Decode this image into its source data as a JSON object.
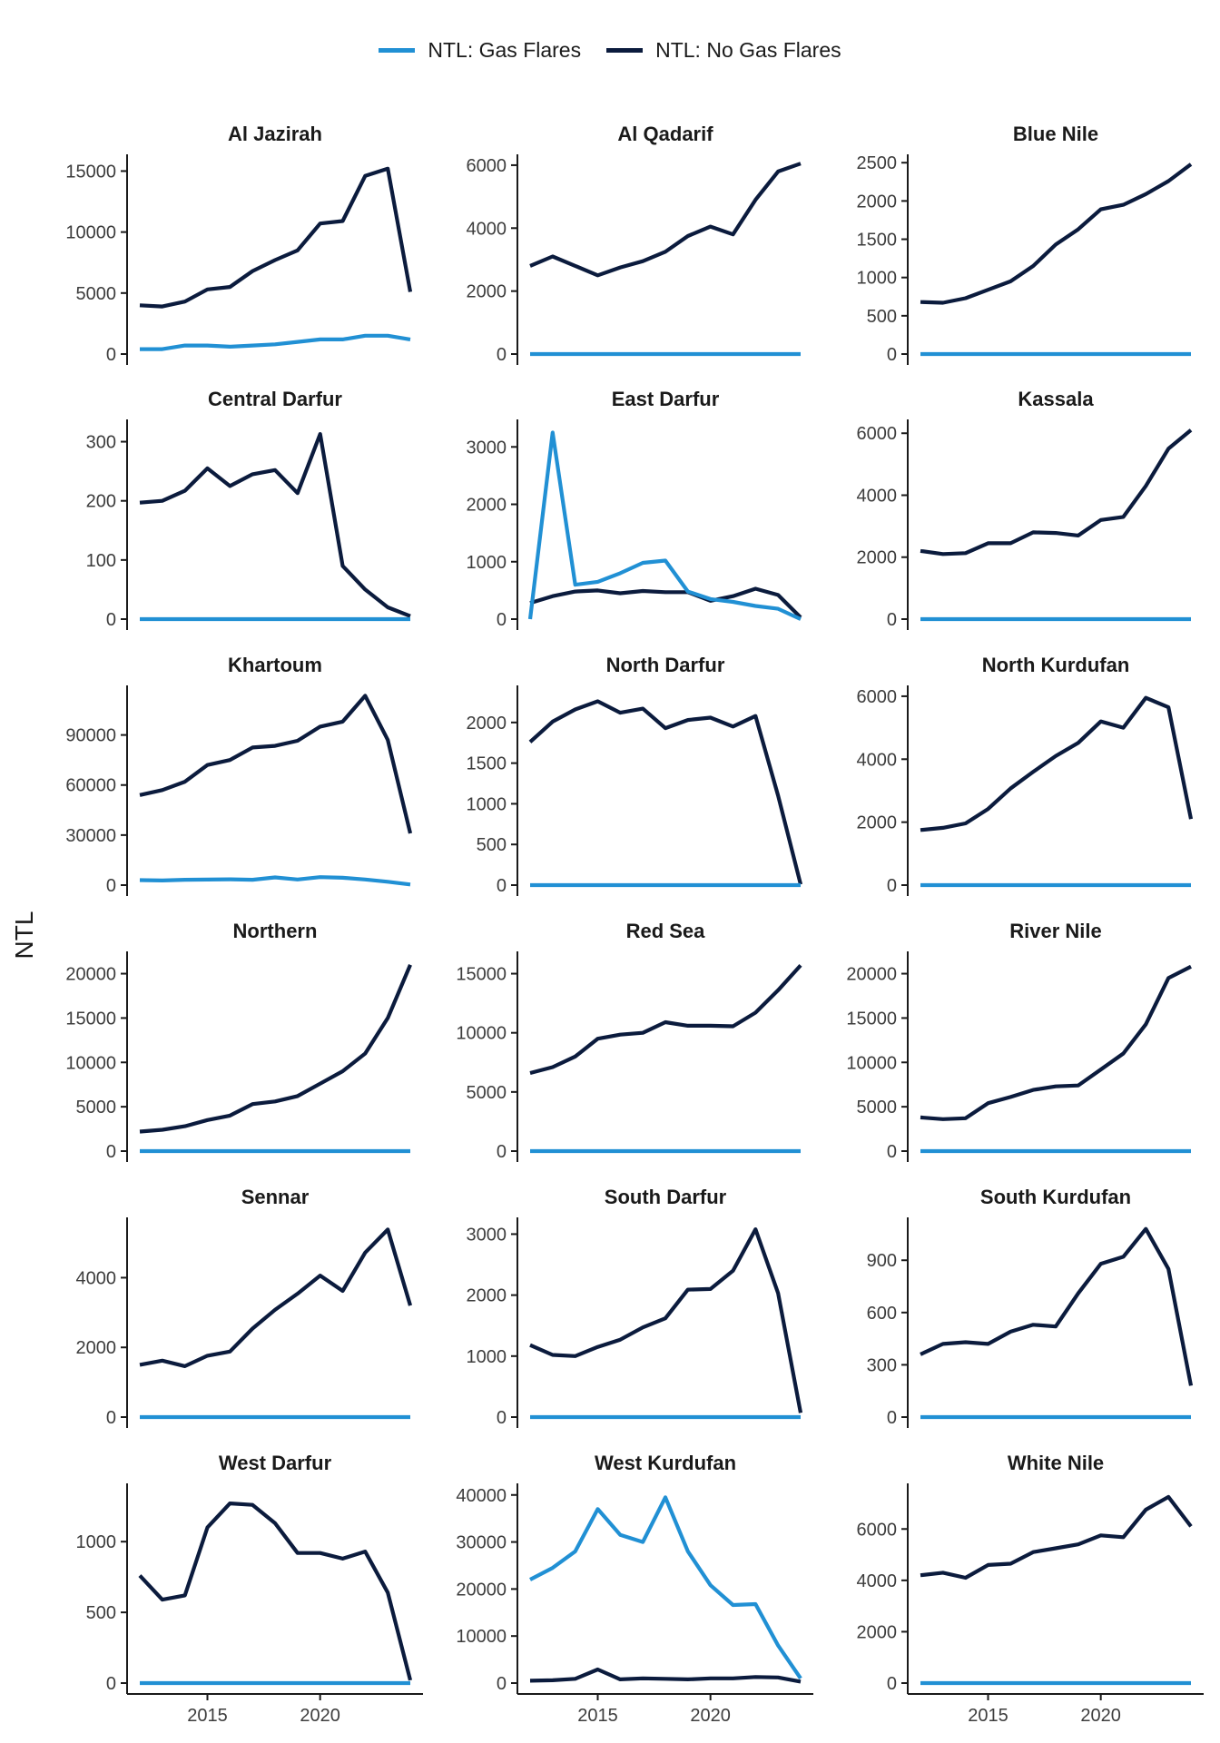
{
  "legend": {
    "items": [
      {
        "label": "NTL: Gas Flares",
        "color": "#2190D4"
      },
      {
        "label": "NTL: No Gas Flares",
        "color": "#0B1B3D"
      }
    ]
  },
  "ylabel": "NTL",
  "chart_data": {
    "type": "line",
    "ylabel": "NTL",
    "x_ticks": [
      2015,
      2020
    ],
    "years": [
      2012,
      2013,
      2014,
      2015,
      2016,
      2017,
      2018,
      2019,
      2020,
      2021,
      2022,
      2023,
      2024
    ],
    "panels": [
      {
        "title": "Al Jazirah",
        "ylim": [
          0,
          16000
        ],
        "yticks": [
          0,
          5000,
          10000,
          15000
        ],
        "gas_flares": [
          400,
          400,
          700,
          700,
          600,
          700,
          800,
          1000,
          1200,
          1200,
          1500,
          1500,
          1200
        ],
        "no_gas_flares": [
          4000,
          3900,
          4300,
          5300,
          5500,
          6800,
          7700,
          8500,
          10700,
          10900,
          14600,
          15200,
          5100
        ]
      },
      {
        "title": "Al Qadarif",
        "ylim": [
          0,
          6200
        ],
        "yticks": [
          0,
          2000,
          4000,
          6000
        ],
        "gas_flares": [
          0,
          0,
          0,
          0,
          0,
          0,
          0,
          0,
          0,
          0,
          0,
          0,
          0
        ],
        "no_gas_flares": [
          2800,
          3100,
          2800,
          2500,
          2750,
          2950,
          3250,
          3750,
          4050,
          3800,
          4900,
          5800,
          6050
        ]
      },
      {
        "title": "Blue Nile",
        "ylim": [
          0,
          2550
        ],
        "yticks": [
          0,
          500,
          1000,
          1500,
          2000,
          2500
        ],
        "gas_flares": [
          0,
          0,
          0,
          0,
          0,
          0,
          0,
          0,
          0,
          0,
          0,
          0,
          0
        ],
        "no_gas_flares": [
          680,
          670,
          730,
          840,
          950,
          1150,
          1430,
          1630,
          1890,
          1950,
          2090,
          2260,
          2480
        ]
      },
      {
        "title": "Central Darfur",
        "ylim": [
          0,
          330
        ],
        "yticks": [
          0,
          100,
          200,
          300
        ],
        "gas_flares": [
          0,
          0,
          0,
          0,
          0,
          0,
          0,
          0,
          0,
          0,
          0,
          0,
          0
        ],
        "no_gas_flares": [
          197,
          200,
          217,
          255,
          225,
          245,
          252,
          213,
          313,
          90,
          50,
          20,
          5
        ]
      },
      {
        "title": "East Darfur",
        "ylim": [
          0,
          3400
        ],
        "yticks": [
          0,
          1000,
          2000,
          3000
        ],
        "gas_flares": [
          0,
          3250,
          600,
          650,
          800,
          980,
          1020,
          480,
          350,
          300,
          230,
          180,
          0
        ],
        "no_gas_flares": [
          280,
          400,
          480,
          500,
          450,
          490,
          470,
          470,
          320,
          400,
          530,
          420,
          30
        ]
      },
      {
        "title": "Kassala",
        "ylim": [
          0,
          6300
        ],
        "yticks": [
          0,
          2000,
          4000,
          6000
        ],
        "gas_flares": [
          0,
          0,
          0,
          0,
          0,
          0,
          0,
          0,
          0,
          0,
          0,
          0,
          0
        ],
        "no_gas_flares": [
          2200,
          2100,
          2130,
          2450,
          2450,
          2800,
          2780,
          2700,
          3200,
          3300,
          4300,
          5500,
          6100
        ]
      },
      {
        "title": "Khartoum",
        "ylim": [
          0,
          117000
        ],
        "yticks": [
          0,
          30000,
          60000,
          90000
        ],
        "gas_flares": [
          3000,
          2800,
          3200,
          3300,
          3500,
          3200,
          4600,
          3400,
          4800,
          4400,
          3400,
          2000,
          400
        ],
        "no_gas_flares": [
          54000,
          57000,
          62000,
          72000,
          75000,
          82500,
          83500,
          86500,
          95000,
          98000,
          113500,
          87000,
          31000
        ]
      },
      {
        "title": "North Darfur",
        "ylim": [
          0,
          2400
        ],
        "yticks": [
          0,
          500,
          1000,
          1500,
          2000
        ],
        "gas_flares": [
          0,
          0,
          0,
          0,
          0,
          0,
          0,
          0,
          0,
          0,
          0,
          0,
          0
        ],
        "no_gas_flares": [
          1760,
          2010,
          2160,
          2260,
          2120,
          2170,
          1930,
          2030,
          2060,
          1950,
          2080,
          1100,
          10
        ]
      },
      {
        "title": "North Kurdufan",
        "ylim": [
          0,
          6200
        ],
        "yticks": [
          0,
          2000,
          4000,
          6000
        ],
        "gas_flares": [
          0,
          0,
          0,
          0,
          0,
          0,
          0,
          0,
          0,
          0,
          0,
          0,
          0
        ],
        "no_gas_flares": [
          1750,
          1820,
          1960,
          2420,
          3070,
          3600,
          4100,
          4520,
          5200,
          5000,
          5950,
          5650,
          2100
        ]
      },
      {
        "title": "Northern",
        "ylim": [
          0,
          22000
        ],
        "yticks": [
          0,
          5000,
          10000,
          15000,
          20000
        ],
        "gas_flares": [
          0,
          0,
          0,
          0,
          0,
          0,
          0,
          0,
          0,
          0,
          0,
          0,
          0
        ],
        "no_gas_flares": [
          2200,
          2400,
          2800,
          3500,
          4000,
          5300,
          5600,
          6200,
          7600,
          9000,
          11000,
          15000,
          21000
        ]
      },
      {
        "title": "Red Sea",
        "ylim": [
          0,
          16500
        ],
        "yticks": [
          0,
          5000,
          10000,
          15000
        ],
        "gas_flares": [
          0,
          0,
          0,
          0,
          0,
          0,
          0,
          0,
          0,
          0,
          0,
          0,
          0
        ],
        "no_gas_flares": [
          6600,
          7100,
          8000,
          9500,
          9850,
          10000,
          10900,
          10600,
          10600,
          10550,
          11700,
          13600,
          15700
        ]
      },
      {
        "title": "River Nile",
        "ylim": [
          0,
          22000
        ],
        "yticks": [
          0,
          5000,
          10000,
          15000,
          20000
        ],
        "gas_flares": [
          0,
          0,
          0,
          0,
          0,
          0,
          0,
          0,
          0,
          0,
          0,
          0,
          0
        ],
        "no_gas_flares": [
          3800,
          3600,
          3700,
          5400,
          6100,
          6900,
          7300,
          7400,
          9200,
          11000,
          14300,
          19500,
          20800
        ]
      },
      {
        "title": "Sennar",
        "ylim": [
          0,
          5600
        ],
        "yticks": [
          0,
          2000,
          4000
        ],
        "gas_flares": [
          0,
          0,
          0,
          0,
          0,
          0,
          0,
          0,
          0,
          0,
          0,
          0,
          0
        ],
        "no_gas_flares": [
          1500,
          1620,
          1460,
          1760,
          1880,
          2540,
          3080,
          3540,
          4060,
          3620,
          4720,
          5380,
          3200
        ]
      },
      {
        "title": "South Darfur",
        "ylim": [
          0,
          3200
        ],
        "yticks": [
          0,
          1000,
          2000,
          3000
        ],
        "gas_flares": [
          0,
          0,
          0,
          0,
          0,
          0,
          0,
          0,
          0,
          0,
          0,
          0,
          0
        ],
        "no_gas_flares": [
          1180,
          1020,
          1000,
          1150,
          1270,
          1470,
          1620,
          2090,
          2100,
          2400,
          3080,
          2030,
          70
        ]
      },
      {
        "title": "South Kurdufan",
        "ylim": [
          0,
          1120
        ],
        "yticks": [
          0,
          300,
          600,
          900
        ],
        "gas_flares": [
          0,
          0,
          0,
          0,
          0,
          0,
          0,
          0,
          0,
          0,
          0,
          0,
          0
        ],
        "no_gas_flares": [
          360,
          420,
          430,
          420,
          490,
          530,
          520,
          710,
          880,
          920,
          1080,
          850,
          180
        ]
      },
      {
        "title": "West Darfur",
        "ylim": [
          0,
          1380
        ],
        "yticks": [
          0,
          500,
          1000
        ],
        "gas_flares": [
          0,
          0,
          0,
          0,
          0,
          0,
          0,
          0,
          0,
          0,
          0,
          0,
          0
        ],
        "no_gas_flares": [
          760,
          590,
          620,
          1100,
          1270,
          1260,
          1130,
          920,
          920,
          880,
          930,
          640,
          20
        ]
      },
      {
        "title": "West Kurdufan",
        "ylim": [
          0,
          41500
        ],
        "yticks": [
          0,
          10000,
          20000,
          30000,
          40000
        ],
        "gas_flares": [
          22000,
          24500,
          28000,
          37000,
          31500,
          30000,
          39500,
          28000,
          20800,
          16600,
          16800,
          8000,
          1000
        ],
        "no_gas_flares": [
          500,
          600,
          900,
          2900,
          800,
          1000,
          900,
          800,
          1000,
          1000,
          1300,
          1200,
          300
        ]
      },
      {
        "title": "White Nile",
        "ylim": [
          0,
          7600
        ],
        "yticks": [
          0,
          2000,
          4000,
          6000
        ],
        "gas_flares": [
          0,
          0,
          0,
          0,
          0,
          0,
          0,
          0,
          0,
          0,
          0,
          0,
          0
        ],
        "no_gas_flares": [
          4200,
          4300,
          4100,
          4600,
          4650,
          5100,
          5250,
          5400,
          5750,
          5680,
          6750,
          7250,
          6100
        ]
      }
    ]
  }
}
